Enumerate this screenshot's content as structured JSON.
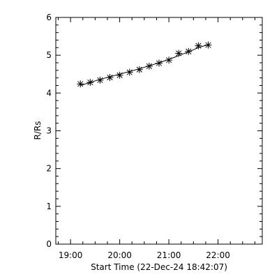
{
  "chart_data": {
    "type": "scatter",
    "xlabel": "Start Time (22-Dec-24 18:42:07)",
    "ylabel": "R/Rs",
    "xlim": [
      "18:42",
      "22:54"
    ],
    "ylim": [
      0,
      6
    ],
    "x_ticks": [
      "19:00",
      "20:00",
      "21:00",
      "22:00"
    ],
    "y_ticks": [
      "0",
      "1",
      "2",
      "3",
      "4",
      "5",
      "6"
    ],
    "grid": false,
    "legend": "none",
    "marker": "asterisk",
    "fit_line": true,
    "color": "#000000",
    "series": [
      {
        "x": [
          "19:12",
          "19:24",
          "19:36",
          "19:48",
          "20:00",
          "20:12",
          "20:24",
          "20:36",
          "20:48",
          "21:00",
          "21:12",
          "21:24",
          "21:36",
          "21:48"
        ],
        "y": [
          4.24,
          4.28,
          4.34,
          4.41,
          4.47,
          4.55,
          4.62,
          4.71,
          4.79,
          4.87,
          5.05,
          5.1,
          5.25,
          5.27
        ]
      }
    ],
    "fit_y": [
      4.2,
      4.28,
      4.36,
      4.43,
      4.5,
      4.57,
      4.64,
      4.72,
      4.8,
      4.89,
      4.99,
      5.09,
      5.2,
      5.28
    ]
  }
}
